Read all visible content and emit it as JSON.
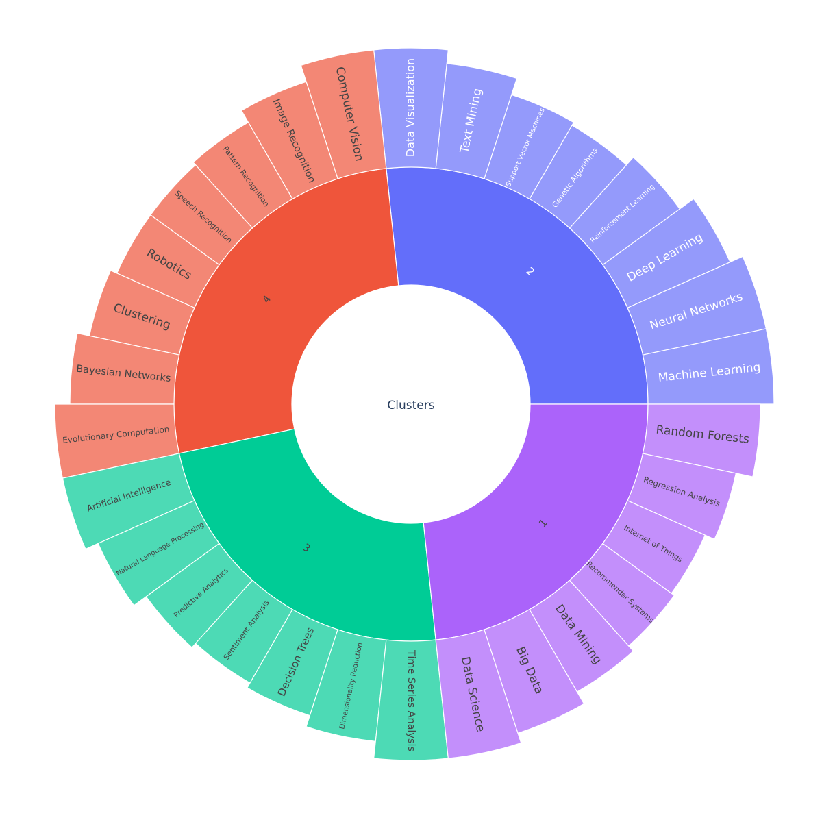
{
  "chart_data": {
    "type": "sunburst",
    "root": "Clusters",
    "colors": {
      "cluster_1": "#ab63fa",
      "cluster_2": "#636efa",
      "cluster_3": "#00cc96",
      "cluster_4": "#ef553b",
      "leaf_1": "#c38ffb",
      "leaf_2": "#949afb",
      "leaf_3": "#4ddab5",
      "leaf_4": "#f38775",
      "center_text": "#2a3f5f",
      "dark_text": "#444444",
      "light_text": "#ffffff"
    },
    "clusters": [
      {
        "id": "c2",
        "name": "2",
        "color": "#636efa",
        "leaf_color": "#949afb",
        "text_color": "#ffffff",
        "count": 8,
        "leaves": [
          {
            "label": "Machine Learning",
            "outer_radius": 530
          },
          {
            "label": "Neural Networks",
            "outer_radius": 530
          },
          {
            "label": "Deep Learning",
            "outer_radius": 510
          },
          {
            "label": "Reinforcement Learning",
            "outer_radius": 485
          },
          {
            "label": "Genetic Algorithms",
            "outer_radius": 470
          },
          {
            "label": "Support Vector Machines",
            "outer_radius": 475
          },
          {
            "label": "Text Mining",
            "outer_radius": 500
          },
          {
            "label": "Data Visualization",
            "outer_radius": 520
          }
        ]
      },
      {
        "id": "c4",
        "name": "4",
        "color": "#ef553b",
        "leaf_color": "#f38775",
        "text_color": "#444444",
        "count": 8,
        "leaves": [
          {
            "label": "Computer Vision",
            "outer_radius": 520
          },
          {
            "label": "Image Recognition",
            "outer_radius": 495
          },
          {
            "label": "Pattern Recognition",
            "outer_radius": 475
          },
          {
            "label": "Speech Recognition",
            "outer_radius": 470
          },
          {
            "label": "Robotics",
            "outer_radius": 470
          },
          {
            "label": "Clustering",
            "outer_radius": 480
          },
          {
            "label": "Bayesian Networks",
            "outer_radius": 498
          },
          {
            "label": "Evolutionary Computation",
            "outer_radius": 520
          }
        ]
      },
      {
        "id": "c3",
        "name": "3",
        "color": "#00cc96",
        "leaf_color": "#4ddab5",
        "text_color": "#444444",
        "count": 7,
        "leaves": [
          {
            "label": "Artificial Intelligence",
            "outer_radius": 520
          },
          {
            "label": "Natural Language Processing",
            "outer_radius": 500
          },
          {
            "label": "Predictive Analytics",
            "outer_radius": 478
          },
          {
            "label": "Sentiment Analysis",
            "outer_radius": 470
          },
          {
            "label": "Decision Trees",
            "outer_radius": 478
          },
          {
            "label": "Dimensionality Reduction",
            "outer_radius": 495
          },
          {
            "label": "Time Series Analysis",
            "outer_radius": 520
          }
        ]
      },
      {
        "id": "c1",
        "name": "1",
        "color": "#ab63fa",
        "leaf_color": "#c38ffb",
        "text_color": "#444444",
        "count": 7,
        "leaves": [
          {
            "label": "Data Science",
            "outer_radius": 520
          },
          {
            "label": "Big Data",
            "outer_radius": 505
          },
          {
            "label": "Data Mining",
            "outer_radius": 485
          },
          {
            "label": "Recommender Systems",
            "outer_radius": 475
          },
          {
            "label": "Internet of Things",
            "outer_radius": 470
          },
          {
            "label": "Regression Analysis",
            "outer_radius": 485
          },
          {
            "label": "Random Forests",
            "outer_radius": 510
          }
        ]
      }
    ]
  }
}
